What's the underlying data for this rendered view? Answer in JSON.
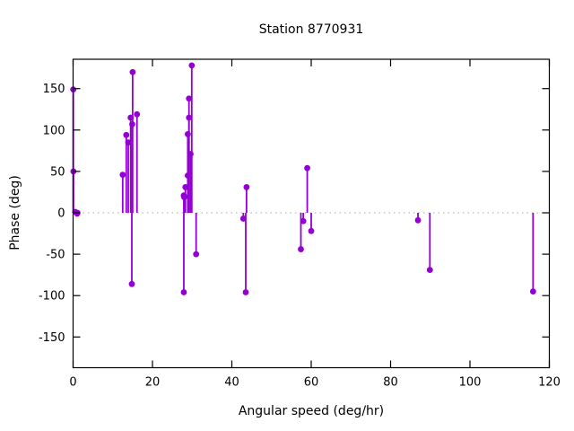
{
  "title": "Station 8770931",
  "x_axis": {
    "label": "Angular speed (deg/hr)",
    "ticks": [
      0,
      20,
      40,
      60,
      80,
      100,
      120
    ]
  },
  "y_axis": {
    "label": "Phase (deg)",
    "ticks": [
      150,
      100,
      50,
      0,
      -50,
      -100,
      -150
    ]
  },
  "colors": {
    "series": "#9400D3",
    "zero_line": "#a8a8a8",
    "border": "#000000",
    "background": "#ffffff",
    "text": "#000000"
  },
  "chart_data": {
    "type": "scatter",
    "subtype": "impulse-stems-with-points",
    "title": "Station 8770931",
    "xlabel": "Angular speed (deg/hr)",
    "ylabel": "Phase (deg)",
    "xlim": [
      0,
      120
    ],
    "ylim": [
      -188,
      186
    ],
    "grid": "dotted zero line only",
    "legend": "none",
    "points": [
      [
        0.04,
        149
      ],
      [
        0.08,
        50
      ],
      [
        0.54,
        1
      ],
      [
        1.02,
        -1
      ],
      [
        1.1,
        0
      ],
      [
        12.5,
        46
      ],
      [
        13.4,
        94
      ],
      [
        13.9,
        85
      ],
      [
        14.5,
        115
      ],
      [
        14.8,
        -86
      ],
      [
        14.9,
        107
      ],
      [
        15.0,
        170
      ],
      [
        16.1,
        119
      ],
      [
        27.9,
        21
      ],
      [
        27.9,
        -96
      ],
      [
        28.0,
        19
      ],
      [
        28.3,
        31
      ],
      [
        28.9,
        95
      ],
      [
        28.9,
        45
      ],
      [
        29.2,
        138
      ],
      [
        29.2,
        115
      ],
      [
        29.6,
        71
      ],
      [
        29.9,
        178
      ],
      [
        31.0,
        -50
      ],
      [
        42.9,
        -7
      ],
      [
        43.5,
        -96
      ],
      [
        43.7,
        31
      ],
      [
        57.4,
        -44
      ],
      [
        58.0,
        -10
      ],
      [
        59.0,
        54
      ],
      [
        60.0,
        -22
      ],
      [
        86.9,
        -9
      ],
      [
        89.9,
        -69
      ],
      [
        115.9,
        -95
      ]
    ]
  }
}
